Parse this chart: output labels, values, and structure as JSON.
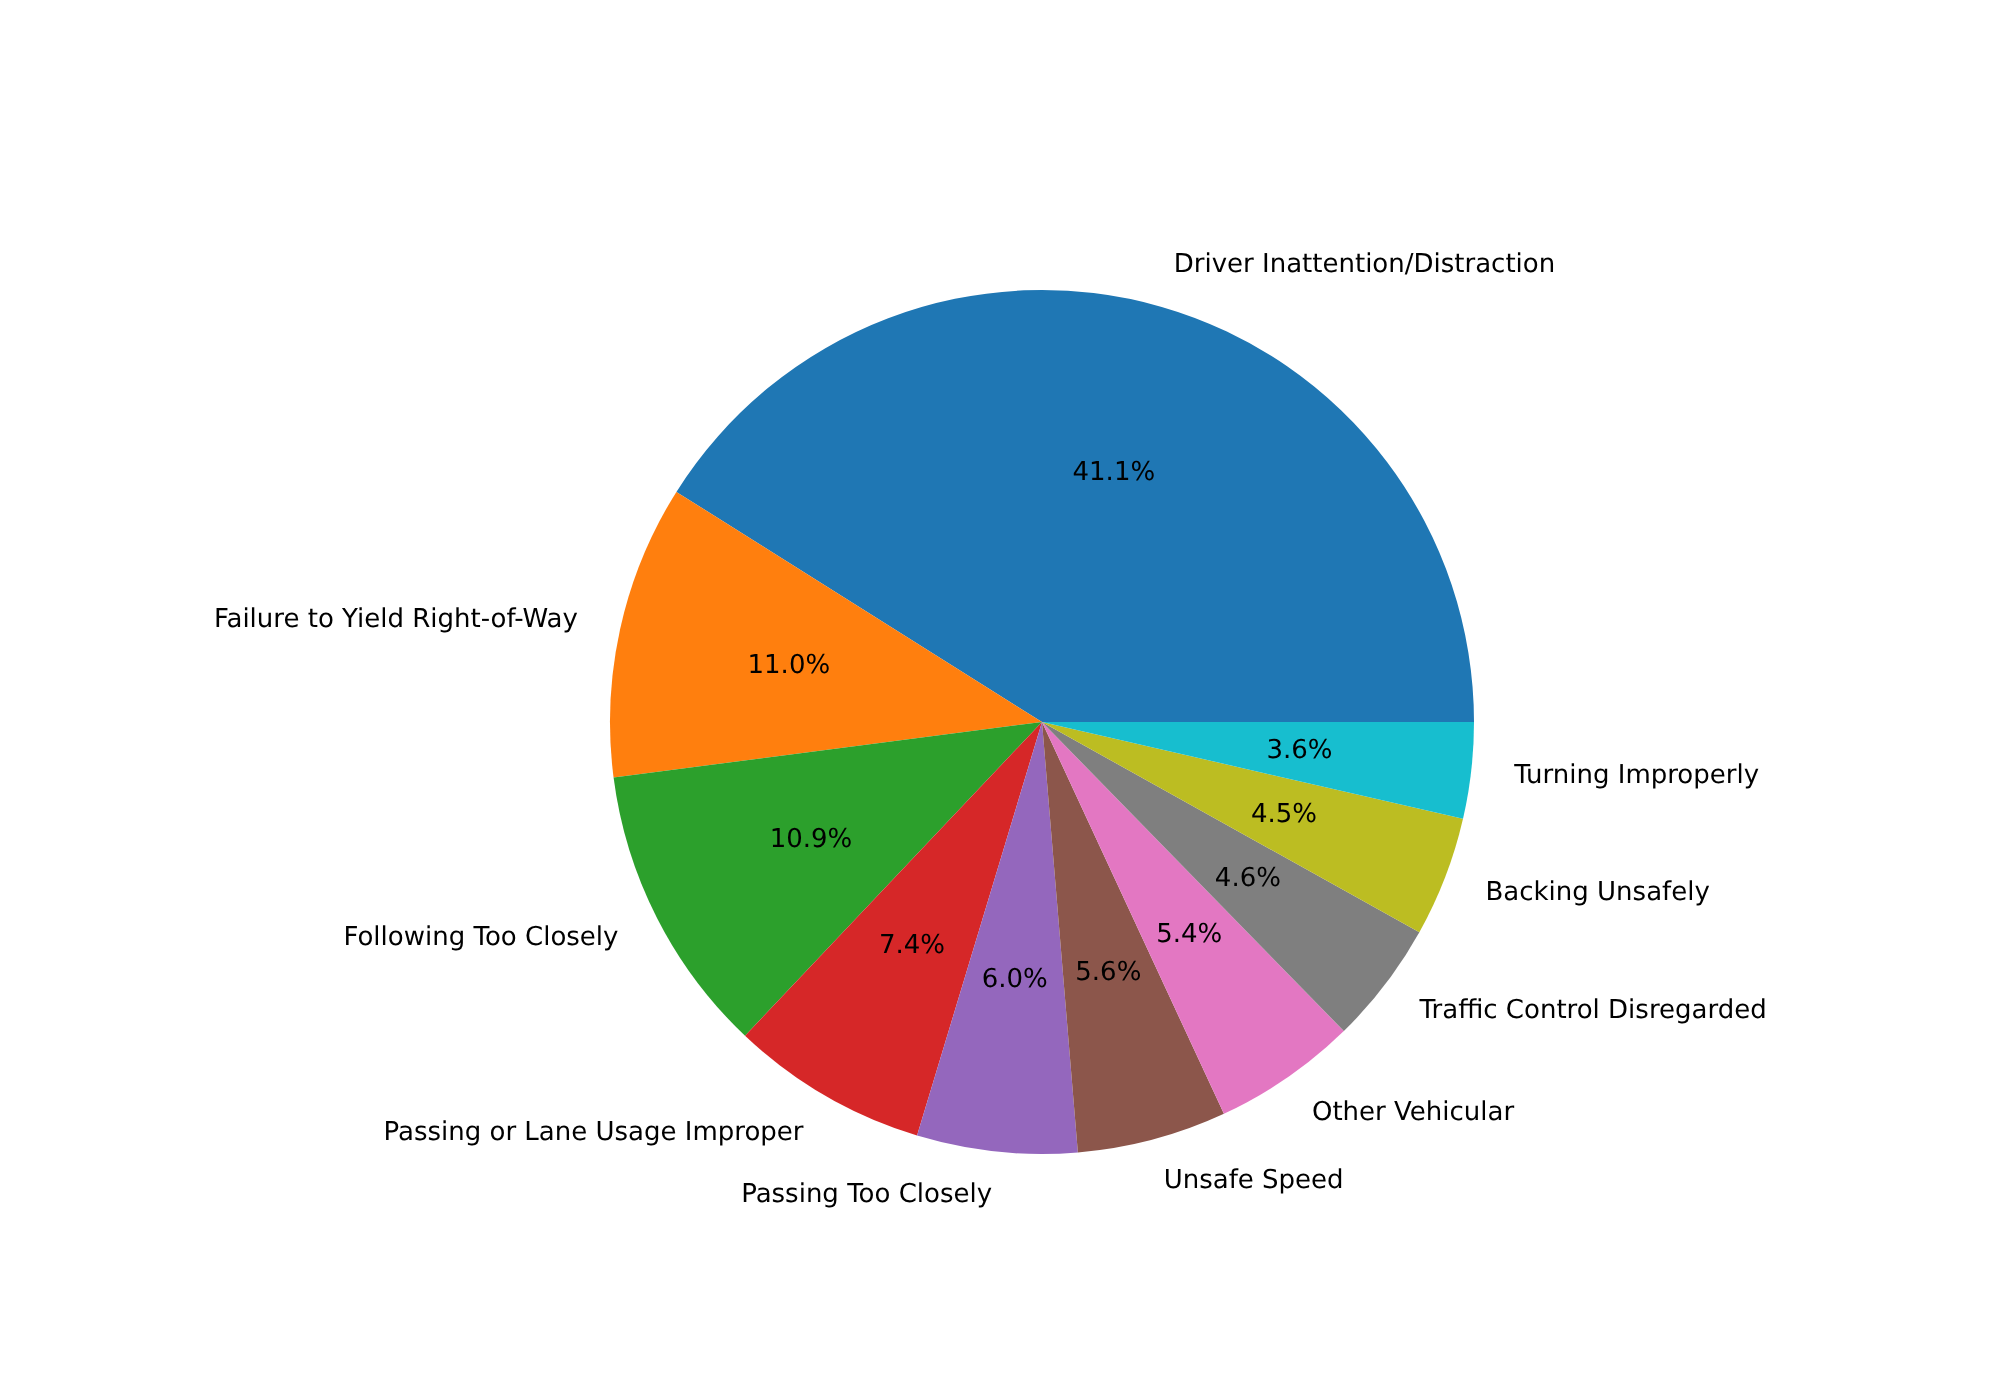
{
  "chart_data": {
    "type": "pie",
    "categories": [
      "Driver Inattention/Distraction",
      "Failure to Yield Right-of-Way",
      "Following Too Closely",
      "Passing or Lane Usage Improper",
      "Passing Too Closely",
      "Unsafe Speed",
      "Other Vehicular",
      "Traffic Control Disregarded",
      "Backing Unsafely",
      "Turning Improperly"
    ],
    "values": [
      41.1,
      11.0,
      10.9,
      7.4,
      6.0,
      5.6,
      5.4,
      4.6,
      4.5,
      3.6
    ],
    "value_labels": [
      "41.1%",
      "11.0%",
      "10.9%",
      "7.4%",
      "6.0%",
      "5.6%",
      "5.4%",
      "4.6%",
      "4.5%",
      "3.6%"
    ],
    "colors": [
      "#1f77b4",
      "#ff7f0e",
      "#2ca02c",
      "#d62728",
      "#9467bd",
      "#8c564b",
      "#e377c2",
      "#7f7f7f",
      "#bcbd22",
      "#17becf"
    ]
  }
}
